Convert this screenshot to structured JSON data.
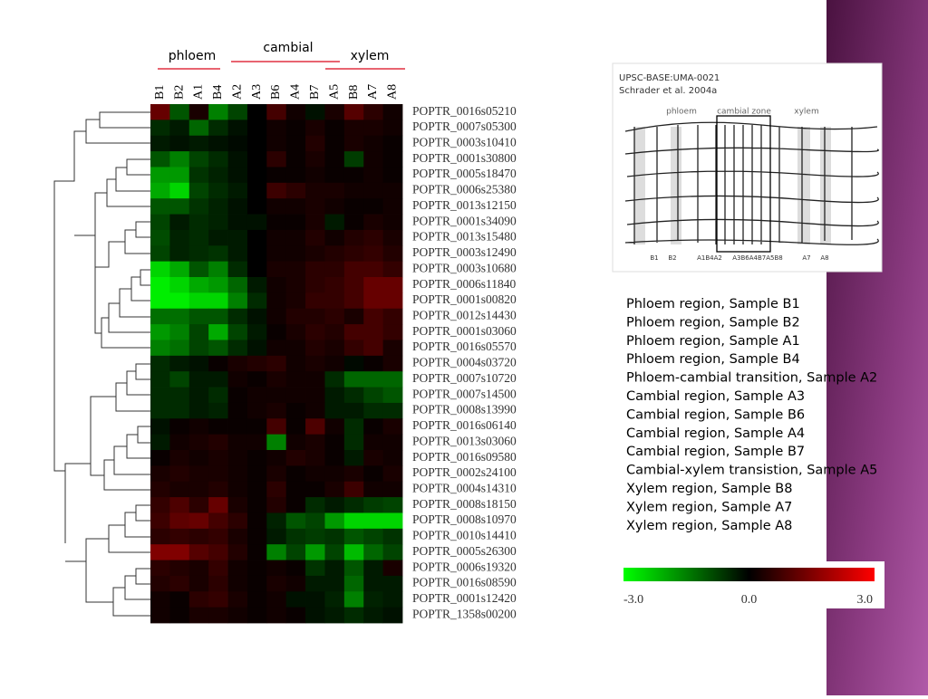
{
  "chart_data": {
    "type": "heatmap",
    "group_labels": [
      "phloem",
      "cambial",
      "xylem"
    ],
    "categories": [
      "B1",
      "B2",
      "A1",
      "B4",
      "A2",
      "A3",
      "B6",
      "A4",
      "B7",
      "A5",
      "B8",
      "A7",
      "A8"
    ],
    "rows": [
      "POPTR_0016s05210",
      "POPTR_0007s05300",
      "POPTR_0003s10410",
      "POPTR_0001s30800",
      "POPTR_0005s18470",
      "POPTR_0006s25380",
      "POPTR_0013s12150",
      "POPTR_0001s34090",
      "POPTR_0013s15480",
      "POPTR_0003s12490",
      "POPTR_0003s10680",
      "POPTR_0006s11840",
      "POPTR_0001s00820",
      "POPTR_0012s14430",
      "POPTR_0001s03060",
      "POPTR_0016s05570",
      "POPTR_0004s03720",
      "POPTR_0007s10720",
      "POPTR_0007s14500",
      "POPTR_0008s13990",
      "POPTR_0016s06140",
      "POPTR_0013s03060",
      "POPTR_0016s09580",
      "POPTR_0002s24100",
      "POPTR_0004s14310",
      "POPTR_0008s18150",
      "POPTR_0008s10970",
      "POPTR_0010s14410",
      "POPTR_0005s26300",
      "POPTR_0006s19320",
      "POPTR_0016s08590",
      "POPTR_0001s12420",
      "POPTR_1358s00200"
    ],
    "values": [
      [
        1.2,
        -1,
        0.3,
        -1.5,
        -0.8,
        0,
        0.8,
        0.2,
        -0.2,
        0.3,
        1,
        0.5,
        0.2
      ],
      [
        -0.5,
        -0.3,
        -1.2,
        -0.5,
        -0.2,
        0,
        0.2,
        0.1,
        0.3,
        0.1,
        0.3,
        0.3,
        0.2
      ],
      [
        -0.3,
        -0.2,
        -0.3,
        -0.2,
        -0.1,
        0,
        0.2,
        0.1,
        0.4,
        0.1,
        0.3,
        0.2,
        0.1
      ],
      [
        -1,
        -1.5,
        -0.8,
        -0.5,
        -0.2,
        0,
        0.5,
        0.1,
        0.3,
        0.1,
        -0.7,
        0.2,
        0.1
      ],
      [
        -1.8,
        -1.8,
        -0.6,
        -0.4,
        -0.2,
        0,
        0.1,
        0.1,
        0.2,
        0.1,
        0.1,
        0.2,
        0.1
      ],
      [
        -2,
        -2.5,
        -0.8,
        -0.5,
        -0.3,
        0,
        0.7,
        0.5,
        0.3,
        0.3,
        0.2,
        0.2,
        0.2
      ],
      [
        -1,
        -1,
        -0.6,
        -0.4,
        -0.2,
        0,
        0.2,
        0.2,
        0.3,
        0.2,
        0.1,
        0.1,
        0.2
      ],
      [
        -0.8,
        -0.3,
        -0.5,
        -0.4,
        -0.2,
        -0.2,
        0.1,
        0.1,
        0.3,
        -0.3,
        0.1,
        0.3,
        0.2
      ],
      [
        -0.9,
        -0.4,
        -0.5,
        -0.3,
        -0.3,
        0,
        0.2,
        0.2,
        0.4,
        0.2,
        0.4,
        0.5,
        0.3
      ],
      [
        -0.8,
        -0.4,
        -0.5,
        -0.6,
        -0.3,
        0,
        0.2,
        0.2,
        0.3,
        0.4,
        0.5,
        0.6,
        0.4
      ],
      [
        -2.5,
        -2,
        -1,
        -1.5,
        -0.5,
        0,
        0.3,
        0.3,
        0.5,
        0.5,
        0.8,
        0.8,
        0.6
      ],
      [
        -2.8,
        -2.5,
        -2,
        -1.8,
        -1.2,
        -0.3,
        0.2,
        0.3,
        0.5,
        0.6,
        0.8,
        1.2,
        1.2
      ],
      [
        -2.8,
        -2.8,
        -2.5,
        -2.5,
        -1.5,
        -0.5,
        0.2,
        0.3,
        0.6,
        0.6,
        0.8,
        1.2,
        1.2
      ],
      [
        -1.3,
        -1.3,
        -1,
        -1,
        -0.5,
        -0.2,
        0.2,
        0.4,
        0.4,
        0.5,
        0.3,
        0.8,
        0.6
      ],
      [
        -1.8,
        -1.5,
        -0.8,
        -2,
        -0.8,
        -0.3,
        0.1,
        0.3,
        0.5,
        0.4,
        0.8,
        0.8,
        0.6
      ],
      [
        -1.5,
        -1.3,
        -0.8,
        -1,
        -0.5,
        -0.2,
        0.2,
        0.2,
        0.4,
        0.3,
        0.6,
        0.8,
        0.3
      ],
      [
        -0.5,
        -0.3,
        -0.2,
        0.1,
        0.3,
        0.4,
        0.5,
        0.2,
        0.3,
        0.2,
        -0.1,
        0.1,
        0.3
      ],
      [
        -0.5,
        -0.8,
        -0.3,
        -0.3,
        0.2,
        0.1,
        0.3,
        0.2,
        0.2,
        -0.5,
        -1.2,
        -1.2,
        -1.2
      ],
      [
        -0.5,
        -0.5,
        -0.3,
        -0.5,
        0.1,
        0.2,
        0.2,
        0.2,
        0.2,
        -0.3,
        -0.5,
        -0.8,
        -1
      ],
      [
        -0.5,
        -0.5,
        -0.3,
        -0.4,
        0.1,
        0.2,
        0.3,
        0.1,
        0.2,
        -0.3,
        -0.3,
        -0.5,
        -0.5
      ],
      [
        -0.2,
        0.1,
        0.2,
        0.1,
        0.1,
        0.1,
        0.8,
        0.1,
        0.9,
        0.2,
        -0.5,
        0.1,
        0.3
      ],
      [
        -0.3,
        0.2,
        0.3,
        0.4,
        0.2,
        0.2,
        -1.5,
        0.2,
        0.3,
        0.1,
        -0.5,
        0.2,
        0.2
      ],
      [
        0.1,
        0.3,
        0.2,
        0.3,
        0.2,
        0.1,
        0.2,
        0.4,
        0.3,
        0.1,
        -0.3,
        0.3,
        0.2
      ],
      [
        0.3,
        0.4,
        0.3,
        0.3,
        0.2,
        0.1,
        0.3,
        0.1,
        0.2,
        0.2,
        0.3,
        0.1,
        0.3
      ],
      [
        0.4,
        0.3,
        0.3,
        0.4,
        0.2,
        0.1,
        0.5,
        0.1,
        0.1,
        0.3,
        0.7,
        0.2,
        0.2
      ],
      [
        0.6,
        0.9,
        0.5,
        1.2,
        0.3,
        0.1,
        0.4,
        0.1,
        -0.5,
        -0.3,
        -0.5,
        -0.7,
        -0.8
      ],
      [
        0.7,
        1.1,
        1.2,
        0.8,
        0.5,
        0.1,
        -0.4,
        -1,
        -0.8,
        -1.8,
        -2.5,
        -2.5,
        -2.5
      ],
      [
        0.5,
        0.6,
        0.5,
        0.6,
        0.3,
        0.1,
        -0.3,
        -0.6,
        -0.7,
        -0.6,
        -1,
        -0.8,
        -0.6
      ],
      [
        1.5,
        1.5,
        1,
        0.8,
        0.4,
        0.1,
        -1.5,
        -0.8,
        -1.8,
        -0.8,
        -2.2,
        -1.2,
        -0.8
      ],
      [
        0.5,
        0.4,
        0.3,
        0.6,
        0.2,
        0.1,
        0.2,
        0.1,
        -0.6,
        -0.3,
        -1,
        -0.3,
        0.3
      ],
      [
        0.4,
        0.5,
        0.3,
        0.5,
        0.2,
        0.1,
        0.3,
        0.2,
        -0.3,
        -0.3,
        -1.2,
        -0.3,
        -0.3
      ],
      [
        0.2,
        0.1,
        0.5,
        0.6,
        0.3,
        0.1,
        0.2,
        -0.2,
        -0.2,
        -0.4,
        -1.5,
        -0.4,
        -0.3
      ],
      [
        0.2,
        0.1,
        0.3,
        0.3,
        0.2,
        0.1,
        0.2,
        0.1,
        -0.2,
        -0.3,
        -0.5,
        -0.3,
        -0.2
      ]
    ],
    "zlim": [
      -3,
      3
    ],
    "zticks": [
      {
        "value": -3,
        "label": "-3.0"
      },
      {
        "value": 0,
        "label": "0.0"
      },
      {
        "value": 3,
        "label": "3.0"
      }
    ],
    "low_color": "#00ff00",
    "mid_color": "#000000",
    "high_color": "#ff0000",
    "sample_descriptions": [
      "Phloem region, Sample B1",
      "Phloem region, Sample B2",
      "Phloem region, Sample A1",
      "Phloem region, Sample B4",
      "Phloem-cambial transition, Sample A2",
      "Cambial region, Sample A3",
      "Cambial region, Sample B6",
      "Cambial region, Sample A4",
      "Cambial region, Sample B7",
      "Cambial-xylem transistion, Sample A5",
      "Xylem region, Sample B8",
      "Xylem region, Sample A7",
      "Xylem region, Sample A8"
    ],
    "inset": {
      "source": "UPSC-BASE:UMA-0021",
      "citation": "Schrader et al. 2004a",
      "zones": [
        "phloem",
        "cambial zone",
        "xylem"
      ],
      "sample_labels": [
        "B1",
        "B2",
        "A1B4A2",
        "A3B6A4B7A5B8",
        "A7",
        "A8"
      ]
    }
  }
}
